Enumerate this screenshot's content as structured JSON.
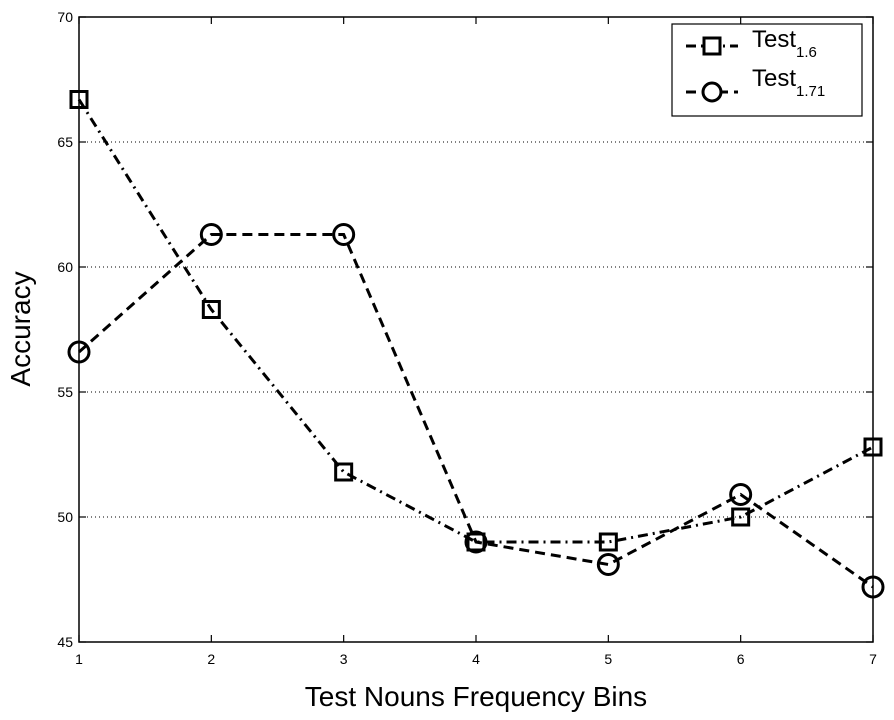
{
  "chart_data": {
    "type": "line",
    "title": "",
    "xlabel": "Test Nouns Frequency Bins",
    "ylabel": "Accuracy",
    "x": [
      1,
      2,
      3,
      4,
      5,
      6,
      7
    ],
    "xlim": [
      1,
      7
    ],
    "ylim": [
      45,
      70
    ],
    "xticks": [
      "1",
      "2",
      "3",
      "4",
      "5",
      "6",
      "7"
    ],
    "yticks": [
      "45",
      "50",
      "55",
      "60",
      "65",
      "70"
    ],
    "ygrid": true,
    "legend_position": "top-right",
    "series": [
      {
        "name": "Test",
        "subscript": "1.6",
        "line_style": "dash-dot",
        "marker": "square",
        "values": [
          66.7,
          58.3,
          51.8,
          49.0,
          49.0,
          50.0,
          52.8
        ]
      },
      {
        "name": "Test",
        "subscript": "1.71",
        "line_style": "dashed",
        "marker": "circle",
        "values": [
          56.6,
          61.3,
          61.3,
          49.0,
          48.1,
          50.9,
          47.2
        ]
      }
    ]
  }
}
